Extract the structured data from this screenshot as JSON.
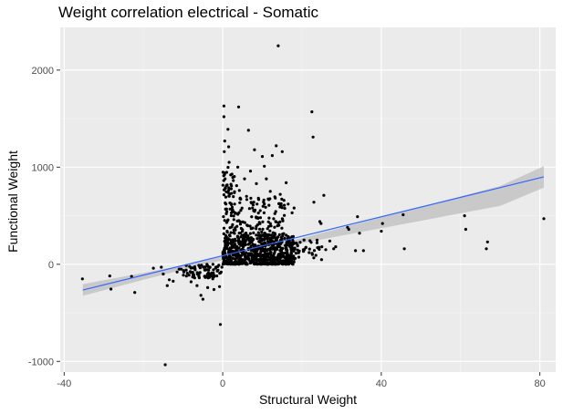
{
  "chart_data": {
    "type": "scatter",
    "title": "Weight correlation electrical - Somatic",
    "xlabel": "Structural Weight",
    "ylabel": "Functional Weight",
    "xlim": [
      -41,
      84
    ],
    "ylim": [
      -1110,
      2440
    ],
    "x_ticks": [
      -40,
      0,
      40,
      80
    ],
    "x_tick_labels": [
      "-40",
      "0",
      "40",
      "80"
    ],
    "y_ticks": [
      -1000,
      0,
      1000,
      2000
    ],
    "y_tick_labels": [
      "-1000",
      "0",
      "1000",
      "2000"
    ],
    "grid": true,
    "background": "#ebebeb",
    "point_color": "#000000",
    "fit_line_color": "#3366ff",
    "ci_band_color": "#bdbdbd",
    "regression": {
      "x": [
        -35.3,
        -20,
        -10,
        0,
        10,
        20,
        30,
        40,
        50,
        60,
        70,
        81
      ],
      "y": [
        -265,
        -124,
        -32,
        60,
        152,
        244,
        336,
        428,
        520,
        612,
        704,
        900
      ],
      "lower": [
        -325,
        -160,
        -55,
        42,
        134,
        218,
        295,
        372,
        448,
        525,
        602,
        790
      ],
      "upper": [
        -205,
        -88,
        -9,
        78,
        170,
        270,
        377,
        484,
        592,
        699,
        806,
        1010
      ]
    },
    "points": [
      [
        -35.4,
        -150
      ],
      [
        -28.5,
        -120
      ],
      [
        -28.2,
        -255
      ],
      [
        -23.0,
        -125
      ],
      [
        -22.2,
        -290
      ],
      [
        -17.5,
        -40
      ],
      [
        -15.5,
        -30
      ],
      [
        -15.0,
        -100
      ],
      [
        -14.5,
        -1035
      ],
      [
        -14.0,
        -220
      ],
      [
        -13.5,
        -160
      ],
      [
        -12.5,
        -175
      ],
      [
        -11.5,
        -80
      ],
      [
        -11.0,
        -50
      ],
      [
        -10.5,
        -50
      ],
      [
        -9.2,
        -60
      ],
      [
        -8.0,
        -180
      ],
      [
        -7.5,
        -110
      ],
      [
        -7.0,
        -40
      ],
      [
        -6.5,
        -220
      ],
      [
        -6.0,
        -120
      ],
      [
        -5.5,
        -320
      ],
      [
        -5.0,
        -360
      ],
      [
        -4.5,
        -60
      ],
      [
        -4.0,
        -130
      ],
      [
        -3.8,
        -240
      ],
      [
        -3.2,
        -30
      ],
      [
        -2.8,
        -90
      ],
      [
        -2.5,
        -150
      ],
      [
        -2.2,
        -260
      ],
      [
        -1.8,
        -40
      ],
      [
        -1.5,
        -120
      ],
      [
        -1.2,
        -60
      ],
      [
        -0.8,
        -230
      ],
      [
        -0.6,
        -620
      ],
      [
        -0.4,
        -80
      ],
      [
        -0.2,
        -30
      ],
      [
        -1.0,
        -10
      ],
      [
        0.3,
        1630
      ],
      [
        0.3,
        1520
      ],
      [
        0.5,
        1270
      ],
      [
        0.4,
        1160
      ],
      [
        0.5,
        940
      ],
      [
        0.6,
        880
      ],
      [
        0.7,
        780
      ],
      [
        0.8,
        620
      ],
      [
        0.9,
        520
      ],
      [
        1.0,
        430
      ],
      [
        1.1,
        340
      ],
      [
        0.9,
        250
      ],
      [
        1.3,
        1390
      ],
      [
        1.5,
        1210
      ],
      [
        1.6,
        1050
      ],
      [
        2.0,
        920
      ],
      [
        2.2,
        730
      ],
      [
        2.5,
        560
      ],
      [
        2.8,
        460
      ],
      [
        3.0,
        620
      ],
      [
        3.5,
        810
      ],
      [
        3.8,
        1000
      ],
      [
        4.2,
        760
      ],
      [
        4.0,
        1620
      ],
      [
        5.5,
        880
      ],
      [
        6.0,
        700
      ],
      [
        6.5,
        1380
      ],
      [
        7.0,
        960
      ],
      [
        7.5,
        580
      ],
      [
        8.0,
        1180
      ],
      [
        8.5,
        830
      ],
      [
        9.0,
        680
      ],
      [
        9.5,
        480
      ],
      [
        10.0,
        1110
      ],
      [
        10.5,
        1010
      ],
      [
        11.0,
        880
      ],
      [
        12.0,
        750
      ],
      [
        12.5,
        1120
      ],
      [
        13.5,
        1220
      ],
      [
        14.0,
        2250
      ],
      [
        14.5,
        720
      ],
      [
        15.0,
        1160
      ],
      [
        16.0,
        840
      ],
      [
        16.5,
        620
      ],
      [
        17.5,
        530
      ],
      [
        18.0,
        580
      ],
      [
        20.5,
        250
      ],
      [
        22.5,
        1570
      ],
      [
        22.8,
        1310
      ],
      [
        23.0,
        640
      ],
      [
        24.5,
        440
      ],
      [
        24.8,
        420
      ],
      [
        25.0,
        180
      ],
      [
        25.5,
        710
      ],
      [
        26.0,
        150
      ],
      [
        27.0,
        240
      ],
      [
        28.0,
        160
      ],
      [
        28.5,
        180
      ],
      [
        31.5,
        380
      ],
      [
        31.8,
        360
      ],
      [
        33.5,
        140
      ],
      [
        34.0,
        490
      ],
      [
        34.5,
        320
      ],
      [
        35.5,
        140
      ],
      [
        40.0,
        340
      ],
      [
        40.3,
        420
      ],
      [
        45.5,
        510
      ],
      [
        45.8,
        160
      ],
      [
        61.0,
        500
      ],
      [
        61.3,
        360
      ],
      [
        66.5,
        160
      ],
      [
        66.8,
        230
      ],
      [
        81.0,
        470
      ]
    ],
    "dense_clusters": [
      {
        "x": [
          -10,
          -0.5
        ],
        "y": [
          -140,
          0
        ],
        "count": 70
      },
      {
        "x": [
          0,
          18
        ],
        "y": [
          0,
          300
        ],
        "count": 700
      },
      {
        "x": [
          0,
          16
        ],
        "y": [
          300,
          700
        ],
        "count": 160
      },
      {
        "x": [
          0,
          3
        ],
        "y": [
          700,
          1000
        ],
        "count": 30
      },
      {
        "x": [
          18,
          25
        ],
        "y": [
          40,
          260
        ],
        "count": 35
      }
    ]
  }
}
